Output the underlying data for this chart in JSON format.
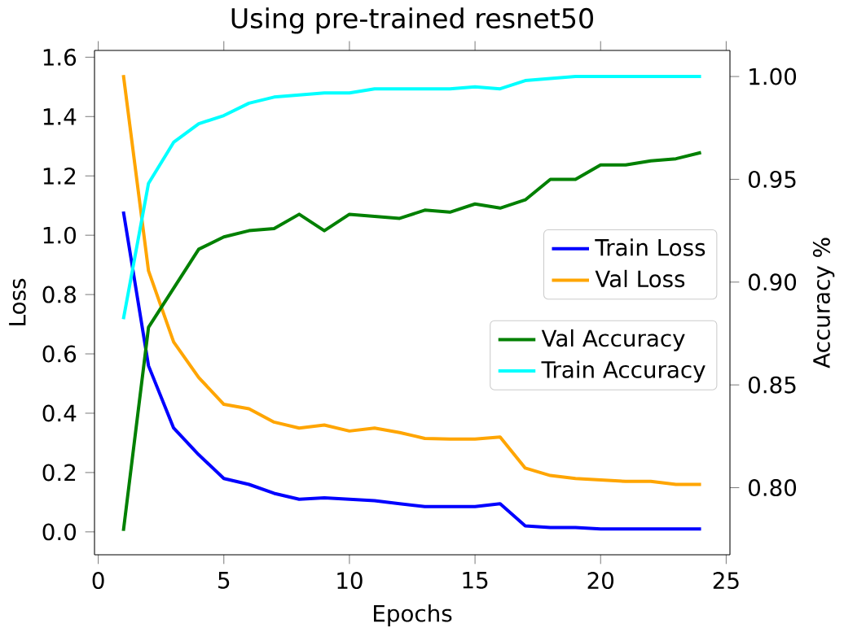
{
  "chart_data": {
    "type": "line",
    "title": "Using pre-trained resnet50",
    "xlabel": "Epochs",
    "ylabel": "Loss",
    "y2label": "Accuracy %",
    "x": [
      1,
      2,
      3,
      4,
      5,
      6,
      7,
      8,
      9,
      10,
      11,
      12,
      13,
      14,
      15,
      16,
      17,
      18,
      19,
      20,
      21,
      22,
      23,
      24
    ],
    "series": [
      {
        "name": "Train Loss",
        "color": "#0000ff",
        "values": [
          1.08,
          0.56,
          0.35,
          0.26,
          0.18,
          0.16,
          0.13,
          0.11,
          0.115,
          0.11,
          0.105,
          0.095,
          0.085,
          0.085,
          0.085,
          0.095,
          0.02,
          0.015,
          0.015,
          0.01,
          0.01,
          0.01,
          0.01,
          0.01
        ]
      },
      {
        "name": "Val Loss",
        "color": "#ffa500",
        "values": [
          1.54,
          0.88,
          0.64,
          0.52,
          0.43,
          0.415,
          0.37,
          0.35,
          0.36,
          0.34,
          0.35,
          0.335,
          0.315,
          0.313,
          0.313,
          0.32,
          0.215,
          0.19,
          0.18,
          0.175,
          0.17,
          0.17,
          0.16,
          0.16
        ]
      },
      {
        "name": "Val Accuracy",
        "color": "#008000",
        "axis": "y2",
        "values": [
          0.779,
          0.878,
          0.897,
          0.916,
          0.922,
          0.925,
          0.926,
          0.933,
          0.925,
          0.933,
          0.932,
          0.931,
          0.935,
          0.934,
          0.938,
          0.936,
          0.94,
          0.95,
          0.95,
          0.957,
          0.957,
          0.959,
          0.96,
          0.963
        ]
      },
      {
        "name": "Train Accuracy",
        "color": "#00ffff",
        "axis": "y2",
        "values": [
          0.882,
          0.948,
          0.968,
          0.977,
          0.981,
          0.987,
          0.99,
          0.991,
          0.992,
          0.992,
          0.994,
          0.994,
          0.994,
          0.994,
          0.995,
          0.994,
          0.998,
          0.999,
          1.0,
          1.0,
          1.0,
          1.0,
          1.0,
          1.0
        ]
      }
    ],
    "xlim": [
      -0.15,
      25.15
    ],
    "xticks": [
      0,
      5,
      10,
      15,
      20,
      25
    ],
    "ylim": [
      -0.077,
      1.623
    ],
    "yticks": [
      {
        "value": 0,
        "label": "0.0"
      },
      {
        "value": 0.2,
        "label": "0.2"
      },
      {
        "value": 0.4,
        "label": "0.4"
      },
      {
        "value": 0.6,
        "label": "0.6"
      },
      {
        "value": 0.8,
        "label": "0.8"
      },
      {
        "value": 1.0,
        "label": "1.0"
      },
      {
        "value": 1.2,
        "label": "1.2"
      },
      {
        "value": 1.4,
        "label": "1.4"
      },
      {
        "value": 1.6,
        "label": "1.6"
      }
    ],
    "y2lim": [
      0.7674,
      1.0127
    ],
    "y2ticks": [
      {
        "value": 0.8,
        "label": "0.80"
      },
      {
        "value": 0.85,
        "label": "0.85"
      },
      {
        "value": 0.9,
        "label": "0.90"
      },
      {
        "value": 0.95,
        "label": "0.95"
      },
      {
        "value": 1.0,
        "label": "1.00"
      }
    ],
    "legend": "right",
    "grid": false,
    "marker": "none",
    "line_style": "solid"
  }
}
